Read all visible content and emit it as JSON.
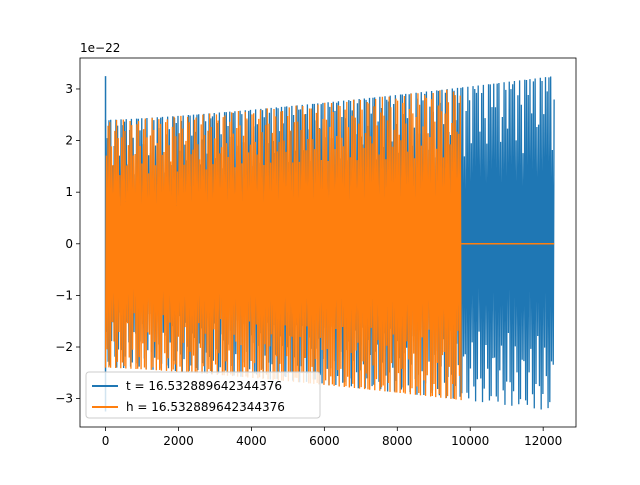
{
  "chart_data": {
    "type": "line",
    "title": "",
    "xlabel": "",
    "ylabel": "",
    "offset_text": "1e−22",
    "xlim": [
      -700,
      12900
    ],
    "ylim": [
      -3.55,
      3.6
    ],
    "xticks": [
      0,
      2000,
      4000,
      6000,
      8000,
      10000,
      12000
    ],
    "xtick_labels": [
      "0",
      "2000",
      "4000",
      "6000",
      "8000",
      "10000",
      "12000"
    ],
    "yticks": [
      -3,
      -2,
      -1,
      0,
      1,
      2,
      3
    ],
    "ytick_labels": [
      "−3",
      "−2",
      "−1",
      "0",
      "1",
      "2",
      "3"
    ],
    "grid": false,
    "legend_position": "lower-left",
    "series": [
      {
        "name": "t = 16.532889642344376",
        "color": "#1f77b4",
        "description_points": [
          {
            "x": 0,
            "y": 3.25
          },
          {
            "x": 100,
            "y": 2.4
          },
          {
            "x": 9700,
            "y": 2.85
          },
          {
            "x": 12300,
            "y": 3.25
          }
        ],
        "x_range": [
          0,
          12300
        ],
        "envelope_start": 2.4,
        "envelope_end": 3.25,
        "initial_spike": 3.25
      },
      {
        "name": "h = 16.532889642344376",
        "color": "#ff7f0e",
        "x_range": [
          0,
          12300
        ],
        "signal_end_x": 9750,
        "envelope_start": 2.4,
        "envelope_end": 3.25,
        "after_signal_value": 0
      }
    ]
  }
}
